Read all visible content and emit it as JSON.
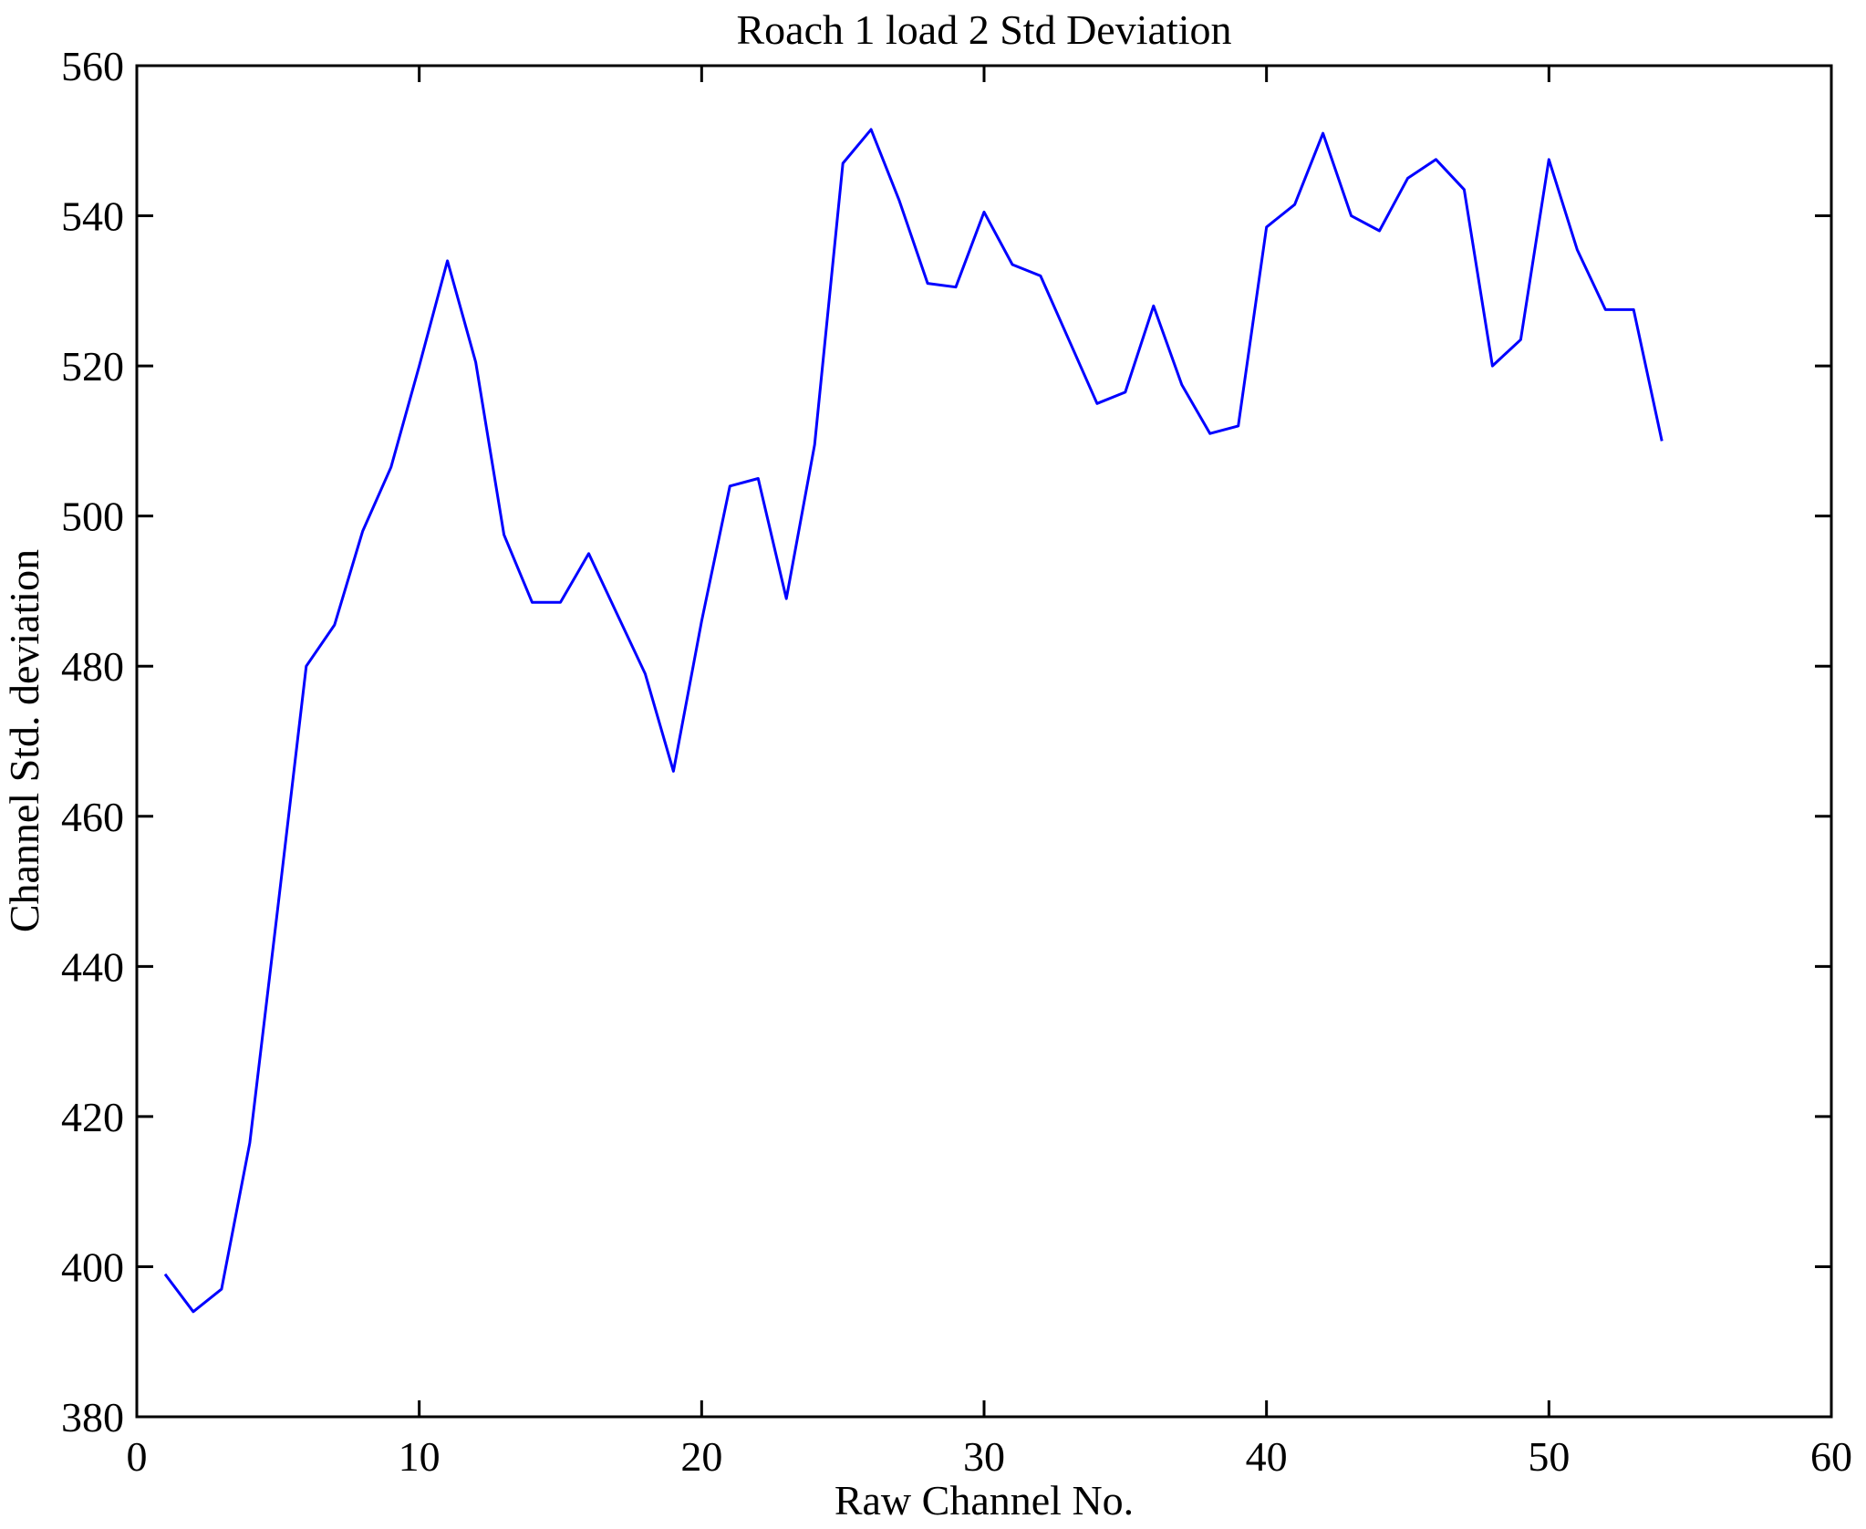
{
  "figure": {
    "background": "#ffffff",
    "axes_color": "#000000"
  },
  "chart_data": {
    "type": "line",
    "title": "Roach 1 load 2 Std Deviation",
    "xlabel": "Raw Channel No.",
    "ylabel": "Channel Std. deviation",
    "xlim": [
      0,
      60
    ],
    "ylim": [
      380,
      560
    ],
    "xticks": [
      0,
      10,
      20,
      30,
      40,
      50,
      60
    ],
    "yticks": [
      380,
      400,
      420,
      440,
      460,
      480,
      500,
      520,
      540,
      560
    ],
    "grid": false,
    "legend": "none",
    "line_color": "#0000ff",
    "series_name": "Channel Std. deviation",
    "x": [
      1,
      2,
      3,
      4,
      5,
      6,
      7,
      8,
      9,
      10,
      11,
      12,
      13,
      14,
      15,
      16,
      17,
      18,
      19,
      20,
      21,
      22,
      23,
      24,
      25,
      26,
      27,
      28,
      29,
      30,
      31,
      32,
      33,
      34,
      35,
      36,
      37,
      38,
      39,
      40,
      41,
      42,
      43,
      44,
      45,
      46,
      47,
      48,
      49,
      50,
      51,
      52,
      53,
      54
    ],
    "values": [
      399,
      394,
      397,
      416.5,
      448,
      480,
      485.5,
      498,
      506.5,
      520,
      534,
      520.5,
      497.5,
      488.5,
      488.5,
      495,
      487,
      479,
      466,
      486,
      504,
      505,
      489,
      509.5,
      547,
      551.5,
      542,
      531,
      530.5,
      540.5,
      533.5,
      532,
      523.5,
      515,
      516.5,
      528,
      517.5,
      511,
      512,
      538.5,
      541.5,
      551,
      540,
      538,
      545,
      547.5,
      543.5,
      520,
      523.5,
      547.5,
      535.5,
      527.5,
      527.5,
      510
    ]
  }
}
